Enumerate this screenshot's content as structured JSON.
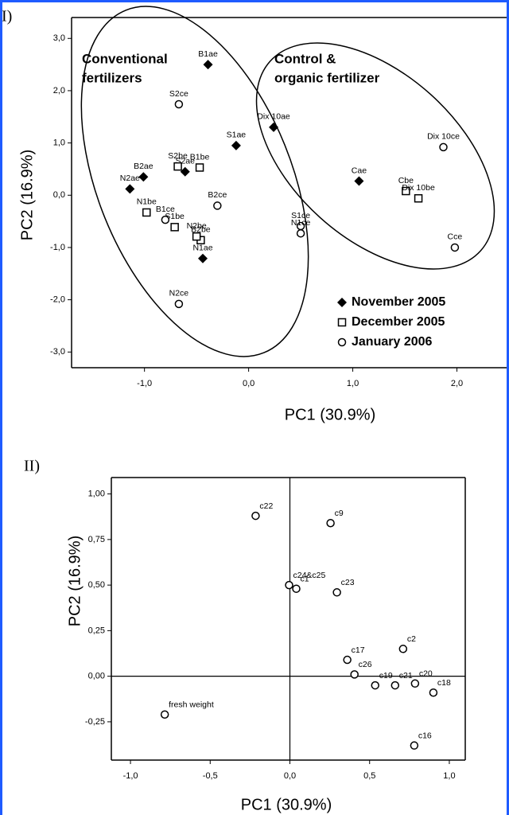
{
  "chart_data": [
    {
      "type": "scatter",
      "panel_label": "I)",
      "x_label": "PC1 (30.9%)",
      "y_label": "PC2 (16.9%)",
      "xlim": [
        -1.7,
        2.5
      ],
      "ylim": [
        -3.3,
        3.4
      ],
      "xticks": [
        {
          "value": -1,
          "label": "-1,0"
        },
        {
          "value": 0,
          "label": "0,0"
        },
        {
          "value": 1,
          "label": "1,0"
        },
        {
          "value": 2,
          "label": "2,0"
        }
      ],
      "yticks": [
        {
          "value": 3,
          "label": "3,0"
        },
        {
          "value": 2,
          "label": "2,0"
        },
        {
          "value": 1,
          "label": "1,0"
        },
        {
          "value": 0,
          "label": "0,0"
        },
        {
          "value": -1,
          "label": "-1,0"
        },
        {
          "value": -2,
          "label": "-2,0"
        },
        {
          "value": -3,
          "label": "-3,0"
        }
      ],
      "annotations": [
        {
          "lines": [
            "Conventional",
            "fertilizers"
          ]
        },
        {
          "lines": [
            "Control &",
            "organic fertilizer"
          ]
        }
      ],
      "legend": "lower right",
      "series": [
        {
          "name": "November 2005",
          "marker": "diamond",
          "color": "#000000",
          "x": [
            -0.39,
            0.24,
            -0.12,
            -0.61,
            -1.01,
            -1.14,
            -0.44,
            1.06
          ],
          "values": [
            2.5,
            1.3,
            0.95,
            0.45,
            0.35,
            0.12,
            -1.21,
            0.27
          ],
          "labels": [
            "B1ae",
            "Dix 10ae",
            "S1ae",
            "S2ae",
            "B2ae",
            "N2ae",
            "N1ae",
            "Cae"
          ]
        },
        {
          "name": "December 2005",
          "marker": "square",
          "color": "#000000",
          "x": [
            -0.68,
            -0.47,
            -0.98,
            -0.71,
            -0.46,
            -0.5,
            1.51,
            1.63
          ],
          "values": [
            0.55,
            0.53,
            -0.33,
            -0.61,
            -0.86,
            -0.79,
            0.08,
            -0.06
          ],
          "labels": [
            "S2be",
            "B1be",
            "N1be",
            "S1be",
            "B2be",
            "N2be",
            "Cbe",
            "Dix 10be"
          ]
        },
        {
          "name": "January 2006",
          "marker": "circle",
          "color": "#000000",
          "x": [
            -0.67,
            1.87,
            -0.3,
            0.5,
            0.5,
            -0.8,
            -0.67,
            1.98
          ],
          "values": [
            1.74,
            0.92,
            -0.2,
            -0.59,
            -0.73,
            -0.47,
            -2.08,
            -1.0
          ],
          "labels": [
            "S2ce",
            "Dix 10ce",
            "B2ce",
            "S1ce",
            "N1ce",
            "B1ce",
            "N2ce",
            "Cce"
          ]
        }
      ]
    },
    {
      "type": "scatter",
      "panel_label": "II)",
      "x_label": "PC1 (30.9%)",
      "y_label": "PC2 (16.9%)",
      "xlim": [
        -1.12,
        1.1
      ],
      "ylim": [
        -0.46,
        1.09
      ],
      "xticks": [
        {
          "value": -1,
          "label": "-1,0"
        },
        {
          "value": -0.5,
          "label": "-0,5"
        },
        {
          "value": 0,
          "label": "0,0"
        },
        {
          "value": 0.5,
          "label": "0,5"
        },
        {
          "value": 1,
          "label": "1,0"
        }
      ],
      "yticks": [
        {
          "value": 1,
          "label": "1,00"
        },
        {
          "value": 0.75,
          "label": "0,75"
        },
        {
          "value": 0.5,
          "label": "0,50"
        },
        {
          "value": 0.25,
          "label": "0,25"
        },
        {
          "value": 0,
          "label": "0,00"
        },
        {
          "value": -0.25,
          "label": "-0,25"
        }
      ],
      "series": [
        {
          "marker": "circle",
          "color": "#000000",
          "x": [
            -0.215,
            0.255,
            -0.005,
            0.04,
            0.295,
            0.71,
            0.36,
            0.405,
            0.535,
            0.66,
            0.785,
            0.9,
            0.78,
            -0.785
          ],
          "values": [
            0.88,
            0.84,
            0.5,
            0.48,
            0.46,
            0.15,
            0.09,
            0.01,
            -0.05,
            -0.05,
            -0.04,
            -0.09,
            -0.38,
            -0.21
          ],
          "labels": [
            "c22",
            "c9",
            "c24&c25",
            "c1",
            "c23",
            "c2",
            "c17",
            "c26",
            "c19",
            "c21",
            "c20",
            "c18",
            "c16",
            "fresh weight"
          ]
        }
      ]
    }
  ]
}
